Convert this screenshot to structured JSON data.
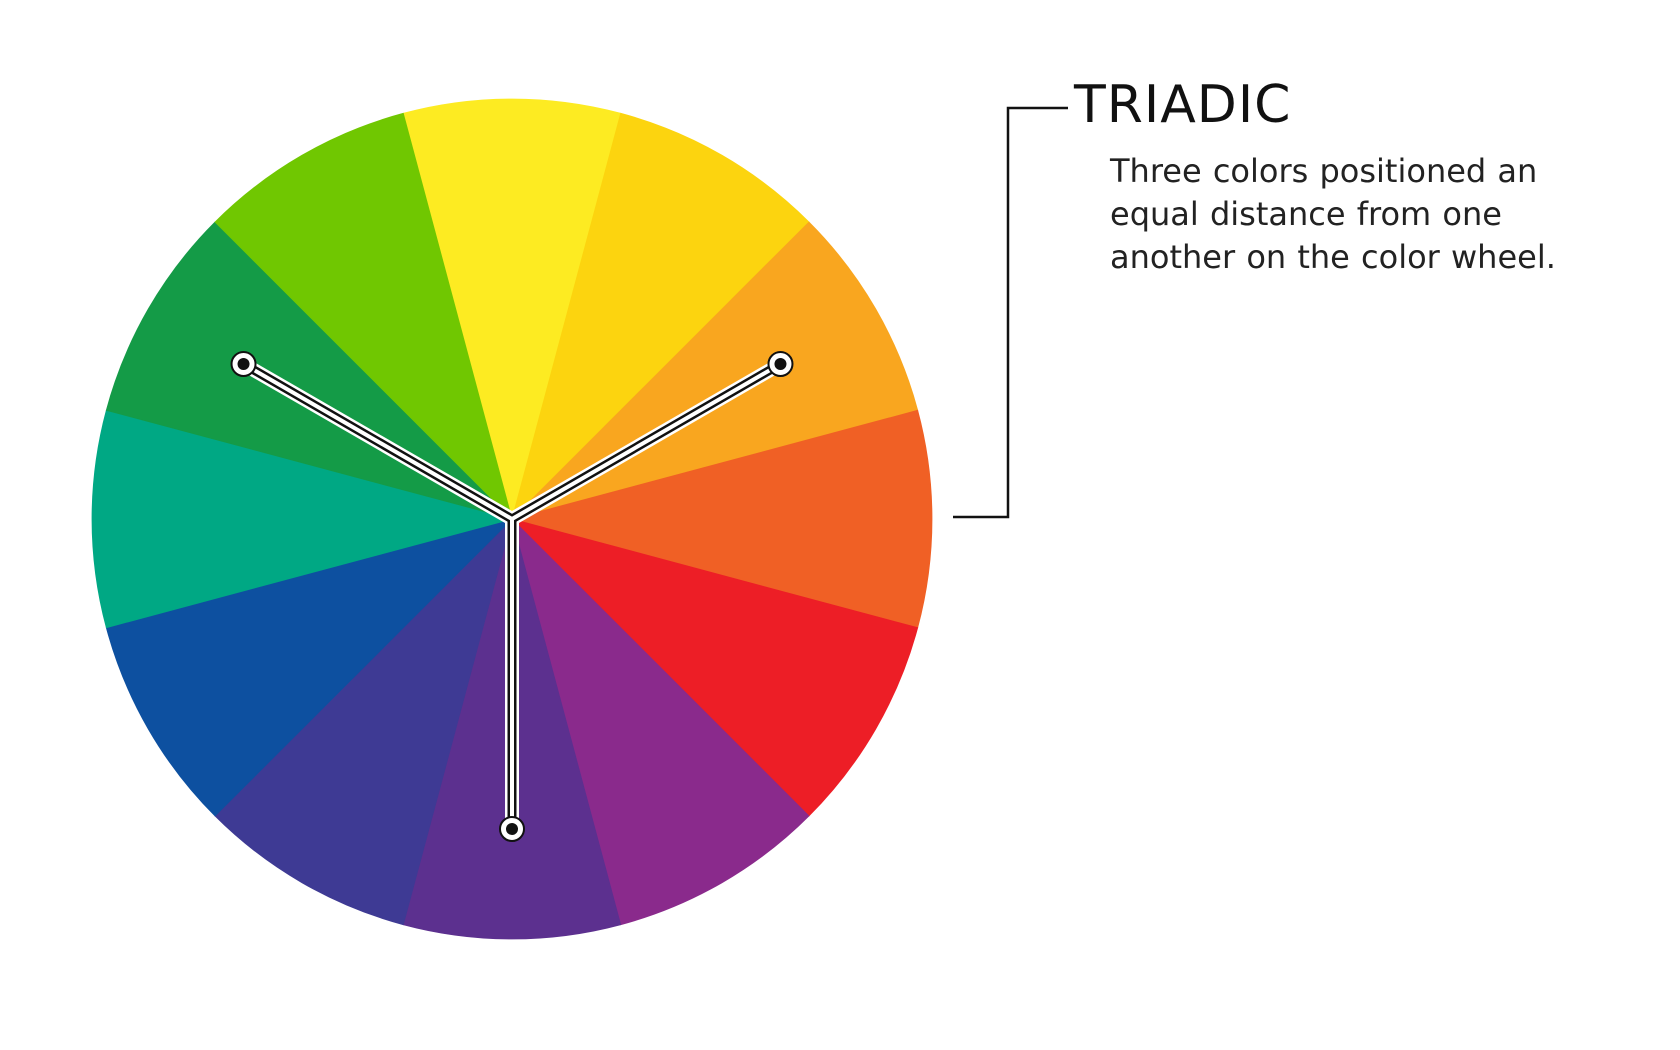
{
  "heading": "TRIADIC",
  "description_lines": [
    "Three colors positioned an",
    "equal distance from one",
    "another on the color wheel."
  ],
  "wheel": {
    "segment_colors": [
      "#FDEB22",
      "#FCD40F",
      "#F9A61F",
      "#F06025",
      "#ED1E26",
      "#8A2A8C",
      "#5C308F",
      "#3E3A94",
      "#0D50A0",
      "#00A884",
      "#149B47",
      "#70C701"
    ],
    "selected_segments": [
      2,
      6,
      10
    ],
    "connector_color": "#111111",
    "connector_outline": "#ffffff"
  },
  "callout_color": "#111111"
}
